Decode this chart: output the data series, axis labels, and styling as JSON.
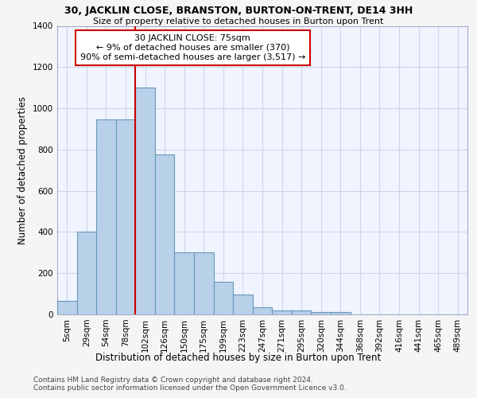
{
  "title": "30, JACKLIN CLOSE, BRANSTON, BURTON-ON-TRENT, DE14 3HH",
  "subtitle": "Size of property relative to detached houses in Burton upon Trent",
  "xlabel": "Distribution of detached houses by size in Burton upon Trent",
  "ylabel": "Number of detached properties",
  "footnote1": "Contains HM Land Registry data © Crown copyright and database right 2024.",
  "footnote2": "Contains public sector information licensed under the Open Government Licence v3.0.",
  "categories": [
    "5sqm",
    "29sqm",
    "54sqm",
    "78sqm",
    "102sqm",
    "126sqm",
    "150sqm",
    "175sqm",
    "199sqm",
    "223sqm",
    "247sqm",
    "271sqm",
    "295sqm",
    "320sqm",
    "344sqm",
    "368sqm",
    "392sqm",
    "416sqm",
    "441sqm",
    "465sqm",
    "489sqm"
  ],
  "bar_values": [
    65,
    400,
    945,
    945,
    1100,
    775,
    300,
    300,
    160,
    95,
    35,
    20,
    20,
    10,
    10,
    0,
    0,
    0,
    0,
    0,
    0
  ],
  "bar_color": "#b8d0e8",
  "bar_edge_color": "#6699bb",
  "vline_color": "#cc0000",
  "vline_x": 3.5,
  "annotation_text": "30 JACKLIN CLOSE: 75sqm\n← 9% of detached houses are smaller (370)\n90% of semi-detached houses are larger (3,517) →",
  "annotation_box_facecolor": "#ffffff",
  "annotation_box_edgecolor": "#cc0000",
  "ylim": [
    0,
    1400
  ],
  "bg_color": "#f5f5f5",
  "plot_bg_color": "#f0f4ff",
  "grid_color": "#d0d4e8"
}
